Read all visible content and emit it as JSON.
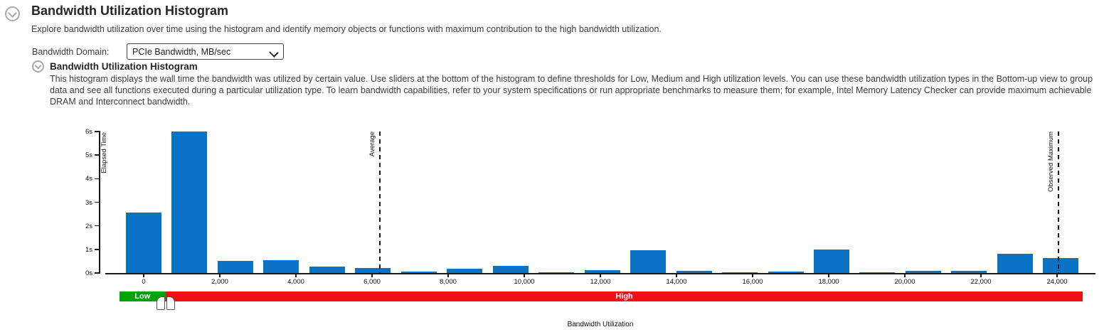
{
  "page": {
    "title": "Bandwidth Utilization Histogram",
    "subtitle": "Explore bandwidth utilization over time using the histogram and identify memory objects or functions with maximum contribution to the high bandwidth utilization."
  },
  "controls": {
    "domain_label": "Bandwidth Domain:",
    "domain_value": "PCIe Bandwidth, MB/sec"
  },
  "section": {
    "heading": "Bandwidth Utilization Histogram",
    "description": "This histogram displays the wall time the bandwidth was utilized by certain value. Use sliders at the bottom of the histogram to define thresholds for Low, Medium and High utilization levels. You can use these bandwidth utilization types in the Bottom-up view to group data and see all functions executed during a particular utilization type. To learn bandwidth capabilities, refer to your system specifications or run appropriate benchmarks to measure them; for example, Intel Memory Latency Checker can provide maximum achievable DRAM and Interconnect bandwidth."
  },
  "icons": {
    "collapse_main": "chevron-down-circle",
    "collapse_section": "chevron-down-circle",
    "select_arrow": "chevron-down"
  },
  "colors": {
    "bar_blue": "#0b72c4",
    "low_green": "#00a206",
    "high_red": "#ee1111",
    "annotation": "#1a1a1a"
  },
  "chart_data": {
    "type": "bar",
    "title": "Bandwidth Utilization Histogram",
    "xlabel": "Bandwidth Utilization",
    "ylabel": "Elapsed Time",
    "x_unit": "MB/sec",
    "xlim": [
      -1010,
      25010
    ],
    "ylim": [
      0,
      6
    ],
    "grid": false,
    "legend": "none",
    "bar_color": "#0b72c4",
    "y_tick_values": [
      0,
      1,
      2,
      3,
      4,
      5,
      6
    ],
    "y_tick_labels": [
      "0s",
      "1s",
      "2s",
      "3s",
      "4s",
      "5s",
      "6s"
    ],
    "x_tick_values": [
      0,
      2000,
      4000,
      6000,
      8000,
      10000,
      12000,
      14000,
      16000,
      18000,
      20000,
      22000,
      24000
    ],
    "x_tick_labels": [
      "0",
      "2,000",
      "4,000",
      "6,000",
      "8,000",
      "10,000",
      "12,000",
      "14,000",
      "16,000",
      "18,000",
      "20,000",
      "22,000",
      "24,000"
    ],
    "bin_pitch": 1205,
    "bar_draw_width": 935,
    "bars": [
      {
        "x": 0,
        "seconds": 2.55
      },
      {
        "x": 1205,
        "seconds": 6.0
      },
      {
        "x": 2410,
        "seconds": 0.5
      },
      {
        "x": 3615,
        "seconds": 0.55
      },
      {
        "x": 4820,
        "seconds": 0.28
      },
      {
        "x": 6025,
        "seconds": 0.2
      },
      {
        "x": 7230,
        "seconds": 0.05
      },
      {
        "x": 8435,
        "seconds": 0.18
      },
      {
        "x": 9640,
        "seconds": 0.3
      },
      {
        "x": 10845,
        "seconds": 0.04
      },
      {
        "x": 12050,
        "seconds": 0.12
      },
      {
        "x": 13255,
        "seconds": 0.95
      },
      {
        "x": 14460,
        "seconds": 0.08
      },
      {
        "x": 15665,
        "seconds": 0.03
      },
      {
        "x": 16870,
        "seconds": 0.06
      },
      {
        "x": 18075,
        "seconds": 0.98
      },
      {
        "x": 19280,
        "seconds": 0.03
      },
      {
        "x": 20485,
        "seconds": 0.1
      },
      {
        "x": 21690,
        "seconds": 0.09
      },
      {
        "x": 22895,
        "seconds": 0.82
      },
      {
        "x": 24100,
        "seconds": 0.63
      }
    ],
    "annotations": [
      {
        "label": "Average",
        "value": 6210,
        "style": "dashed"
      },
      {
        "label": "Observed Maximum",
        "value": 24030,
        "style": "dashed"
      }
    ]
  },
  "slider": {
    "track_start": -640,
    "track_end": 24680,
    "threshold": 575,
    "segments": [
      {
        "label": "Low",
        "color": "#00a206"
      },
      {
        "label": "High",
        "color": "#ee1111"
      }
    ]
  }
}
